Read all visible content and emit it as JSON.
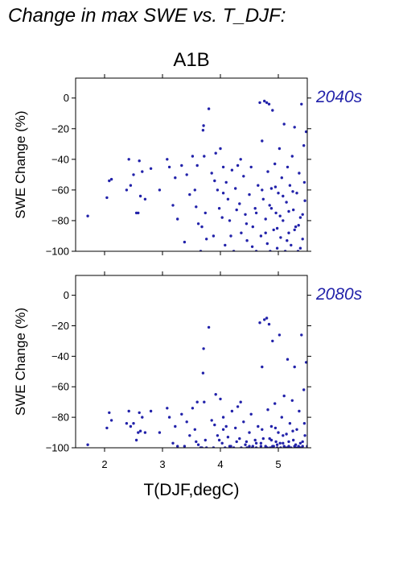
{
  "figure": {
    "title": "Change in max SWE vs. T_DJF:",
    "scenario": "A1B"
  },
  "colors": {
    "points": "#2222aa",
    "panel_label": "#2222aa",
    "axis": "#000000"
  },
  "chart_data": [
    {
      "type": "scatter",
      "panel_label": "2040s",
      "xlabel": "",
      "ylabel": "SWE Change (%)",
      "xlim": [
        1.5,
        5.5
      ],
      "ylim": [
        -100,
        13
      ],
      "yticks": [
        0,
        -20,
        -40,
        -60,
        -80,
        -100
      ],
      "ytick_labels": [
        "0",
        "−20",
        "−40",
        "−60",
        "−80",
        "−100"
      ],
      "xticks": [
        2,
        3,
        4,
        5
      ],
      "xtick_labels": [
        "",
        "",
        "",
        ""
      ],
      "points": [
        [
          1.71,
          -77
        ],
        [
          2.04,
          -65
        ],
        [
          2.08,
          -54
        ],
        [
          2.12,
          -53
        ],
        [
          2.38,
          -60
        ],
        [
          2.42,
          -40
        ],
        [
          2.45,
          -57
        ],
        [
          2.5,
          -50
        ],
        [
          2.55,
          -75
        ],
        [
          2.58,
          -75
        ],
        [
          2.6,
          -41
        ],
        [
          2.62,
          -64
        ],
        [
          2.65,
          -48
        ],
        [
          2.7,
          -66
        ],
        [
          2.8,
          -46
        ],
        [
          2.95,
          -60
        ],
        [
          3.08,
          -40
        ],
        [
          3.12,
          -45
        ],
        [
          3.18,
          -70
        ],
        [
          3.22,
          -52
        ],
        [
          3.26,
          -79
        ],
        [
          3.33,
          -44
        ],
        [
          3.38,
          -94
        ],
        [
          3.42,
          -50
        ],
        [
          3.47,
          -63
        ],
        [
          3.52,
          -38
        ],
        [
          3.56,
          -60
        ],
        [
          3.6,
          -44
        ],
        [
          3.62,
          -82
        ],
        [
          3.66,
          -100
        ],
        [
          3.68,
          -84
        ],
        [
          3.7,
          -21
        ],
        [
          3.71,
          -18
        ],
        [
          3.72,
          -38
        ],
        [
          3.74,
          -75
        ],
        [
          3.76,
          -92
        ],
        [
          3.8,
          -7
        ],
        [
          3.85,
          -49
        ],
        [
          3.88,
          -90
        ],
        [
          3.92,
          -36
        ],
        [
          3.95,
          -60
        ],
        [
          3.98,
          -72
        ],
        [
          4.0,
          -33
        ],
        [
          4.03,
          -78
        ],
        [
          4.05,
          -45
        ],
        [
          4.08,
          -96
        ],
        [
          4.1,
          -55
        ],
        [
          4.13,
          -66
        ],
        [
          4.16,
          -80
        ],
        [
          4.2,
          -47
        ],
        [
          4.23,
          -100
        ],
        [
          4.26,
          -59
        ],
        [
          4.3,
          -44
        ],
        [
          4.33,
          -69
        ],
        [
          4.36,
          -88
        ],
        [
          4.4,
          -51
        ],
        [
          4.43,
          -76
        ],
        [
          4.46,
          -93
        ],
        [
          4.5,
          -63
        ],
        [
          4.53,
          -45
        ],
        [
          4.56,
          -84
        ],
        [
          4.6,
          -72
        ],
        [
          4.62,
          -100
        ],
        [
          4.65,
          -57
        ],
        [
          4.68,
          -3
        ],
        [
          4.7,
          -90
        ],
        [
          4.72,
          -28
        ],
        [
          4.74,
          -66
        ],
        [
          4.76,
          -2
        ],
        [
          4.78,
          -79
        ],
        [
          4.8,
          -3
        ],
        [
          4.81,
          -95
        ],
        [
          4.82,
          -48
        ],
        [
          4.84,
          -4
        ],
        [
          4.85,
          -70
        ],
        [
          4.86,
          -100
        ],
        [
          4.88,
          -59
        ],
        [
          4.9,
          -8
        ],
        [
          4.92,
          -86
        ],
        [
          4.94,
          -43
        ],
        [
          4.96,
          -75
        ],
        [
          4.98,
          -98
        ],
        [
          5.0,
          -62
        ],
        [
          5.02,
          -33
        ],
        [
          5.04,
          -91
        ],
        [
          5.06,
          -52
        ],
        [
          5.08,
          -80
        ],
        [
          5.1,
          -17
        ],
        [
          5.12,
          -100
        ],
        [
          5.14,
          -68
        ],
        [
          5.16,
          -45
        ],
        [
          5.18,
          -88
        ],
        [
          5.2,
          -57
        ],
        [
          5.22,
          -96
        ],
        [
          5.24,
          -38
        ],
        [
          5.26,
          -73
        ],
        [
          5.28,
          -19
        ],
        [
          5.3,
          -84
        ],
        [
          5.32,
          -62
        ],
        [
          5.34,
          -100
        ],
        [
          5.36,
          -49
        ],
        [
          5.38,
          -78
        ],
        [
          5.4,
          -4
        ],
        [
          5.42,
          -92
        ],
        [
          5.44,
          -31
        ],
        [
          5.46,
          -67
        ],
        [
          5.48,
          -22
        ],
        [
          4.05,
          -62
        ],
        [
          4.35,
          -40
        ],
        [
          4.45,
          -82
        ],
        [
          4.55,
          -97
        ],
        [
          4.72,
          -60
        ],
        [
          4.88,
          -72
        ],
        [
          4.95,
          -58
        ],
        [
          5.03,
          -77
        ],
        [
          5.15,
          -93
        ],
        [
          5.25,
          -61
        ],
        [
          5.35,
          -83
        ],
        [
          5.45,
          -55
        ],
        [
          4.62,
          -75
        ],
        [
          4.78,
          -88
        ],
        [
          4.98,
          -85
        ],
        [
          5.18,
          -74
        ],
        [
          5.38,
          -98
        ],
        [
          4.28,
          -73
        ],
        [
          3.58,
          -71
        ],
        [
          3.9,
          -54
        ],
        [
          4.18,
          -90
        ],
        [
          5.08,
          -64
        ],
        [
          5.28,
          -86
        ],
        [
          5.42,
          -76
        ]
      ]
    },
    {
      "type": "scatter",
      "panel_label": "2080s",
      "xlabel": "T(DJF,degC)",
      "ylabel": "SWE Change (%)",
      "xlim": [
        1.5,
        5.5
      ],
      "ylim": [
        -100,
        13
      ],
      "yticks": [
        0,
        -20,
        -40,
        -60,
        -80,
        -100
      ],
      "ytick_labels": [
        "0",
        "−20",
        "−40",
        "−60",
        "−80",
        "−100"
      ],
      "xticks": [
        2,
        3,
        4,
        5
      ],
      "xtick_labels": [
        "2",
        "3",
        "4",
        "5"
      ],
      "points": [
        [
          1.71,
          -98
        ],
        [
          2.04,
          -87
        ],
        [
          2.08,
          -77
        ],
        [
          2.12,
          -82
        ],
        [
          2.38,
          -84
        ],
        [
          2.42,
          -76
        ],
        [
          2.45,
          -86
        ],
        [
          2.5,
          -84
        ],
        [
          2.55,
          -95
        ],
        [
          2.58,
          -90
        ],
        [
          2.6,
          -77
        ],
        [
          2.62,
          -89
        ],
        [
          2.65,
          -80
        ],
        [
          2.7,
          -90
        ],
        [
          2.8,
          -76
        ],
        [
          2.95,
          -90
        ],
        [
          3.08,
          -74
        ],
        [
          3.12,
          -80
        ],
        [
          3.18,
          -97
        ],
        [
          3.22,
          -86
        ],
        [
          3.26,
          -99
        ],
        [
          3.33,
          -78
        ],
        [
          3.38,
          -99
        ],
        [
          3.42,
          -83
        ],
        [
          3.47,
          -92
        ],
        [
          3.52,
          -74
        ],
        [
          3.56,
          -88
        ],
        [
          3.6,
          -70
        ],
        [
          3.62,
          -98
        ],
        [
          3.66,
          -100
        ],
        [
          3.68,
          -100
        ],
        [
          3.7,
          -51
        ],
        [
          3.71,
          -35
        ],
        [
          3.72,
          -70
        ],
        [
          3.74,
          -95
        ],
        [
          3.76,
          -100
        ],
        [
          3.8,
          -21
        ],
        [
          3.85,
          -82
        ],
        [
          3.88,
          -100
        ],
        [
          3.92,
          -65
        ],
        [
          3.95,
          -92
        ],
        [
          3.98,
          -95
        ],
        [
          4.0,
          -68
        ],
        [
          4.03,
          -97
        ],
        [
          4.05,
          -80
        ],
        [
          4.08,
          -100
        ],
        [
          4.1,
          -86
        ],
        [
          4.13,
          -93
        ],
        [
          4.16,
          -99
        ],
        [
          4.2,
          -76
        ],
        [
          4.23,
          -100
        ],
        [
          4.26,
          -87
        ],
        [
          4.3,
          -73
        ],
        [
          4.33,
          -94
        ],
        [
          4.36,
          -100
        ],
        [
          4.4,
          -83
        ],
        [
          4.43,
          -98
        ],
        [
          4.46,
          -100
        ],
        [
          4.5,
          -90
        ],
        [
          4.53,
          -78
        ],
        [
          4.56,
          -99
        ],
        [
          4.6,
          -95
        ],
        [
          4.62,
          -100
        ],
        [
          4.65,
          -86
        ],
        [
          4.68,
          -18
        ],
        [
          4.7,
          -99
        ],
        [
          4.72,
          -47
        ],
        [
          4.74,
          -94
        ],
        [
          4.76,
          -16
        ],
        [
          4.78,
          -100
        ],
        [
          4.8,
          -15
        ],
        [
          4.81,
          -100
        ],
        [
          4.82,
          -75
        ],
        [
          4.84,
          -19
        ],
        [
          4.85,
          -94
        ],
        [
          4.86,
          -100
        ],
        [
          4.88,
          -86
        ],
        [
          4.9,
          -30
        ],
        [
          4.92,
          -99
        ],
        [
          4.94,
          -71
        ],
        [
          4.96,
          -96
        ],
        [
          4.98,
          -100
        ],
        [
          5.0,
          -90
        ],
        [
          5.02,
          -26
        ],
        [
          5.04,
          -100
        ],
        [
          5.06,
          -80
        ],
        [
          5.08,
          -97
        ],
        [
          5.1,
          -66
        ],
        [
          5.12,
          -100
        ],
        [
          5.14,
          -91
        ],
        [
          5.16,
          -42
        ],
        [
          5.18,
          -99
        ],
        [
          5.2,
          -84
        ],
        [
          5.22,
          -100
        ],
        [
          5.24,
          -69
        ],
        [
          5.26,
          -95
        ],
        [
          5.28,
          -47
        ],
        [
          5.3,
          -98
        ],
        [
          5.32,
          -88
        ],
        [
          5.34,
          -100
        ],
        [
          5.36,
          -76
        ],
        [
          5.38,
          -97
        ],
        [
          5.4,
          -26
        ],
        [
          5.42,
          -99
        ],
        [
          5.44,
          -62
        ],
        [
          5.46,
          -92
        ],
        [
          5.48,
          -44
        ],
        [
          4.05,
          -88
        ],
        [
          4.35,
          -70
        ],
        [
          4.45,
          -96
        ],
        [
          4.55,
          -100
        ],
        [
          4.72,
          -88
        ],
        [
          4.88,
          -95
        ],
        [
          4.95,
          -87
        ],
        [
          5.03,
          -97
        ],
        [
          5.15,
          -100
        ],
        [
          5.25,
          -89
        ],
        [
          5.35,
          -99
        ],
        [
          5.45,
          -84
        ],
        [
          4.62,
          -97
        ],
        [
          4.78,
          -99
        ],
        [
          4.98,
          -98
        ],
        [
          5.18,
          -96
        ],
        [
          5.38,
          -100
        ],
        [
          4.28,
          -96
        ],
        [
          3.58,
          -96
        ],
        [
          3.9,
          -85
        ],
        [
          4.18,
          -99
        ],
        [
          5.08,
          -92
        ],
        [
          5.28,
          -99
        ],
        [
          5.42,
          -96
        ],
        [
          4.5,
          -99
        ],
        [
          4.7,
          -97
        ],
        [
          4.9,
          -99
        ],
        [
          5.1,
          -99
        ],
        [
          5.3,
          -100
        ],
        [
          5.5,
          -99
        ]
      ]
    }
  ]
}
